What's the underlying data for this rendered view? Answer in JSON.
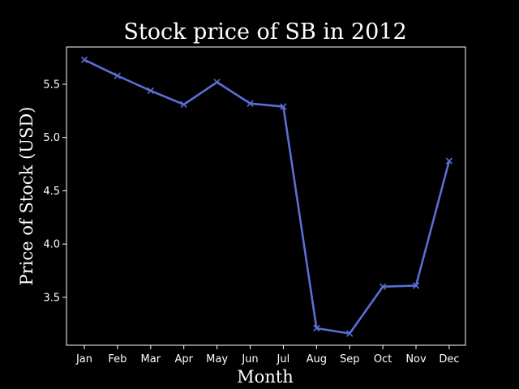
{
  "chart_data": {
    "type": "line",
    "title": "Stock price of SB in 2012",
    "xlabel": "Month",
    "ylabel": "Price of Stock (USD)",
    "categories": [
      "Jan",
      "Feb",
      "Mar",
      "Apr",
      "May",
      "Jun",
      "Jul",
      "Aug",
      "Sep",
      "Oct",
      "Nov",
      "Dec"
    ],
    "series": [
      {
        "values": [
          5.73,
          5.58,
          5.44,
          5.31,
          5.52,
          5.32,
          5.29,
          3.21,
          3.16,
          3.6,
          3.61,
          4.78
        ],
        "color": "#5a6fd6",
        "marker": "x"
      }
    ],
    "yticks": [
      3.5,
      4.0,
      4.5,
      5.0,
      5.5
    ],
    "ytick_labels": [
      "3.5",
      "4.0",
      "4.5",
      "5.0",
      "5.5"
    ],
    "ylim": [
      3.05,
      5.85
    ],
    "grid": false,
    "legend": "none",
    "background": "#000000",
    "foreground": "#ffffff"
  }
}
